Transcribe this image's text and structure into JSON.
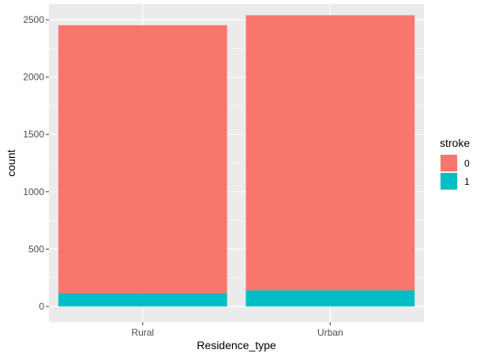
{
  "chart_data": {
    "type": "bar",
    "stacked": true,
    "categories": [
      "Rural",
      "Urban"
    ],
    "series": [
      {
        "name": "0",
        "values": [
          2338,
          2398
        ],
        "color": "#F8766D"
      },
      {
        "name": "1",
        "values": [
          114,
          141
        ],
        "color": "#00BFC4"
      }
    ],
    "xlabel": "Residence_type",
    "ylabel": "count",
    "ylim": [
      0,
      2660
    ],
    "yticks": [
      0,
      500,
      1000,
      1500,
      2000,
      2500
    ],
    "ytick_labels": [
      "0",
      "500",
      "1000",
      "1500",
      "2000",
      "2500"
    ],
    "legend": {
      "title": "stroke",
      "labels": [
        "0",
        "1"
      ],
      "position": "right"
    },
    "panel_background": "#EBEBEB",
    "grid": true
  }
}
